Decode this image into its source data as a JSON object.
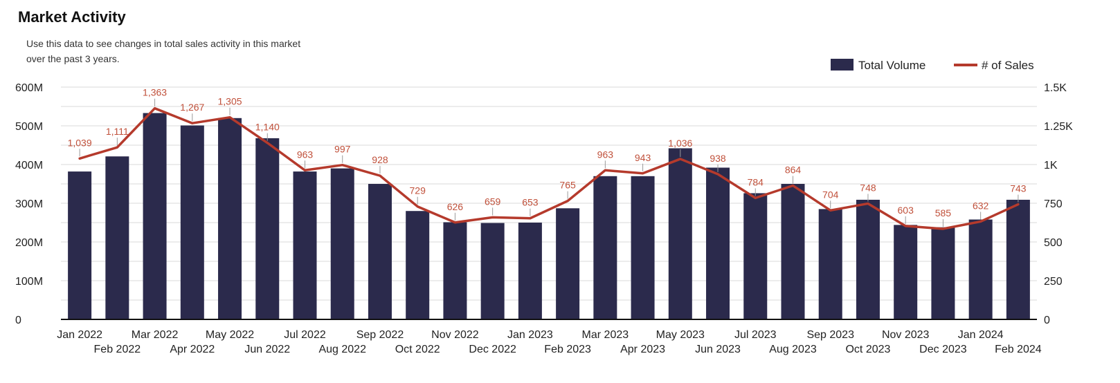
{
  "header": {
    "title": "Market Activity",
    "subtitle": "Use this data to see changes in total sales activity in this market over the past 3 years."
  },
  "colors": {
    "bar": "#2b2a4c",
    "line": "#b53a2c",
    "label": "#c0503a",
    "grid": "#d9d9d9"
  },
  "chart_data": {
    "type": "bar",
    "categories": [
      "Jan 2022",
      "Feb 2022",
      "Mar 2022",
      "Apr 2022",
      "May 2022",
      "Jun 2022",
      "Jul 2022",
      "Aug 2022",
      "Sep 2022",
      "Oct 2022",
      "Nov 2022",
      "Dec 2022",
      "Jan 2023",
      "Feb 2023",
      "Mar 2023",
      "Apr 2023",
      "May 2023",
      "Jun 2023",
      "Jul 2023",
      "Aug 2023",
      "Sep 2023",
      "Oct 2023",
      "Nov 2023",
      "Dec 2023",
      "Jan 2024",
      "Feb 2024"
    ],
    "series": [
      {
        "name": "Total Volume",
        "type": "bar",
        "axis": "left",
        "values": [
          382,
          421,
          533,
          501,
          520,
          468,
          382,
          390,
          350,
          280,
          251,
          249,
          250,
          287,
          370,
          370,
          442,
          392,
          326,
          350,
          285,
          309,
          244,
          238,
          258,
          309
        ]
      },
      {
        "name": "# of Sales",
        "type": "line",
        "axis": "right",
        "values": [
          1039,
          1111,
          1363,
          1267,
          1305,
          1140,
          963,
          997,
          928,
          729,
          626,
          659,
          653,
          765,
          963,
          943,
          1036,
          938,
          784,
          864,
          704,
          748,
          603,
          585,
          632,
          743
        ],
        "labels": [
          "1,039",
          "1,111",
          "1,363",
          "1,267",
          "1,305",
          "1,140",
          "963",
          "997",
          "928",
          "729",
          "626",
          "659",
          "653",
          "765",
          "963",
          "943",
          "1,036",
          "938",
          "784",
          "864",
          "704",
          "748",
          "603",
          "585",
          "632",
          "743"
        ]
      }
    ],
    "y_left": {
      "ylim": [
        0,
        600
      ],
      "ticks": [
        0,
        100,
        200,
        300,
        400,
        500,
        600
      ],
      "tick_labels": [
        "0",
        "100M",
        "200M",
        "300M",
        "400M",
        "500M",
        "600M"
      ]
    },
    "y_right": {
      "ylim": [
        0,
        1500
      ],
      "ticks": [
        0,
        250,
        500,
        750,
        1000,
        1250,
        1500
      ],
      "tick_labels": [
        "0",
        "250",
        "500",
        "750",
        "1K",
        "1.25K",
        "1.5K"
      ]
    },
    "grid": true,
    "legend": {
      "position": "top-right",
      "entries": [
        "Total Volume",
        "# of Sales"
      ]
    }
  }
}
